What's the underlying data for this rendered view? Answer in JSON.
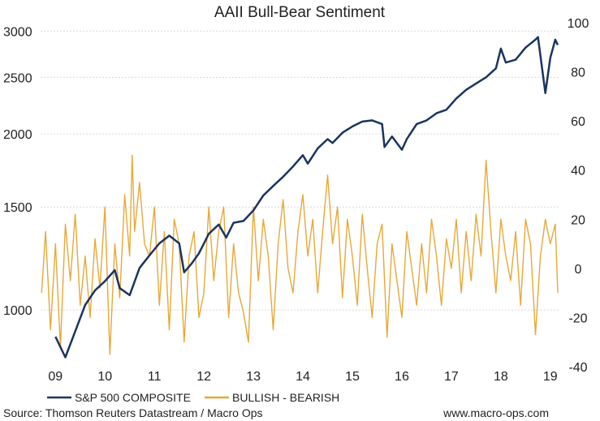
{
  "chart_data": {
    "type": "line",
    "title": "AAII Bull-Bear Sentiment",
    "x_ticks": [
      "09",
      "10",
      "11",
      "12",
      "13",
      "14",
      "15",
      "16",
      "17",
      "18",
      "19"
    ],
    "xlim": [
      2008.7,
      2019.2
    ],
    "left_axis": {
      "scale": "log",
      "ticks": [
        1000,
        1500,
        2000,
        2500,
        3000
      ],
      "ylim": [
        800,
        3100
      ]
    },
    "right_axis": {
      "ticks": [
        -40,
        -20,
        0,
        20,
        40,
        60,
        80,
        100
      ],
      "ylim": [
        -40,
        100
      ]
    },
    "legend": {
      "position": "bottom"
    },
    "series": [
      {
        "name": "S&P 500 COMPOSITE",
        "color": "#1b3461",
        "axis": "left",
        "x": [
          2009.0,
          2009.2,
          2009.4,
          2009.6,
          2009.8,
          2010.0,
          2010.2,
          2010.3,
          2010.5,
          2010.7,
          2010.9,
          2011.1,
          2011.3,
          2011.5,
          2011.6,
          2011.75,
          2011.9,
          2012.1,
          2012.3,
          2012.45,
          2012.6,
          2012.8,
          2013.0,
          2013.2,
          2013.4,
          2013.6,
          2013.8,
          2014.0,
          2014.1,
          2014.3,
          2014.5,
          2014.6,
          2014.8,
          2015.0,
          2015.2,
          2015.4,
          2015.6,
          2015.65,
          2015.8,
          2016.0,
          2016.1,
          2016.3,
          2016.5,
          2016.7,
          2016.9,
          2017.1,
          2017.3,
          2017.5,
          2017.7,
          2017.9,
          2018.0,
          2018.1,
          2018.3,
          2018.5,
          2018.7,
          2018.75,
          2018.9,
          2019.0,
          2019.1,
          2019.15
        ],
        "values": [
          900,
          830,
          920,
          1020,
          1080,
          1120,
          1170,
          1090,
          1060,
          1180,
          1240,
          1300,
          1340,
          1300,
          1160,
          1200,
          1250,
          1350,
          1400,
          1330,
          1410,
          1420,
          1480,
          1570,
          1630,
          1690,
          1760,
          1840,
          1780,
          1890,
          1960,
          1930,
          2010,
          2060,
          2100,
          2110,
          2080,
          1900,
          1980,
          1880,
          1960,
          2080,
          2110,
          2170,
          2200,
          2300,
          2380,
          2440,
          2500,
          2590,
          2800,
          2650,
          2680,
          2810,
          2900,
          2930,
          2350,
          2700,
          2900,
          2840
        ]
      },
      {
        "name": "BULLISH - BEARISH",
        "color": "#e8a838",
        "axis": "right",
        "x": [
          2008.72,
          2008.8,
          2008.9,
          2009.0,
          2009.1,
          2009.2,
          2009.3,
          2009.4,
          2009.5,
          2009.6,
          2009.7,
          2009.8,
          2009.9,
          2010.0,
          2010.1,
          2010.2,
          2010.3,
          2010.4,
          2010.5,
          2010.55,
          2010.6,
          2010.7,
          2010.8,
          2010.9,
          2011.0,
          2011.1,
          2011.2,
          2011.3,
          2011.4,
          2011.5,
          2011.6,
          2011.7,
          2011.8,
          2011.9,
          2012.0,
          2012.1,
          2012.2,
          2012.3,
          2012.4,
          2012.5,
          2012.6,
          2012.7,
          2012.8,
          2012.9,
          2013.0,
          2013.1,
          2013.2,
          2013.3,
          2013.4,
          2013.5,
          2013.6,
          2013.7,
          2013.8,
          2013.9,
          2014.0,
          2014.1,
          2014.2,
          2014.3,
          2014.4,
          2014.5,
          2014.6,
          2014.7,
          2014.8,
          2014.9,
          2015.0,
          2015.1,
          2015.2,
          2015.3,
          2015.4,
          2015.5,
          2015.6,
          2015.7,
          2015.8,
          2015.9,
          2016.0,
          2016.1,
          2016.2,
          2016.3,
          2016.4,
          2016.5,
          2016.6,
          2016.7,
          2016.8,
          2016.9,
          2017.0,
          2017.1,
          2017.2,
          2017.3,
          2017.4,
          2017.5,
          2017.6,
          2017.7,
          2017.8,
          2017.9,
          2018.0,
          2018.1,
          2018.2,
          2018.3,
          2018.4,
          2018.5,
          2018.6,
          2018.7,
          2018.8,
          2018.9,
          2019.0,
          2019.1,
          2019.15
        ],
        "values": [
          -10,
          15,
          -25,
          10,
          -32,
          18,
          -5,
          22,
          -15,
          5,
          -20,
          12,
          -8,
          25,
          -35,
          10,
          -12,
          30,
          5,
          46,
          15,
          35,
          10,
          5,
          25,
          -15,
          15,
          -25,
          20,
          10,
          -30,
          5,
          15,
          -20,
          -10,
          25,
          -5,
          15,
          25,
          -20,
          10,
          -10,
          -18,
          -30,
          25,
          -5,
          20,
          5,
          -25,
          10,
          28,
          0,
          -10,
          15,
          30,
          5,
          20,
          -10,
          15,
          38,
          10,
          25,
          -12,
          20,
          5,
          -15,
          22,
          0,
          -20,
          10,
          18,
          -28,
          10,
          -5,
          -20,
          15,
          0,
          -15,
          10,
          -10,
          20,
          5,
          -15,
          12,
          0,
          20,
          -10,
          15,
          -5,
          22,
          5,
          44,
          15,
          -10,
          20,
          5,
          -5,
          15,
          -15,
          20,
          10,
          -27,
          5,
          20,
          10,
          18,
          -10
        ]
      }
    ]
  },
  "footer": {
    "source": "Source: Thomson Reuters Datastream / Macro Ops",
    "website": "www.macro-ops.com"
  }
}
